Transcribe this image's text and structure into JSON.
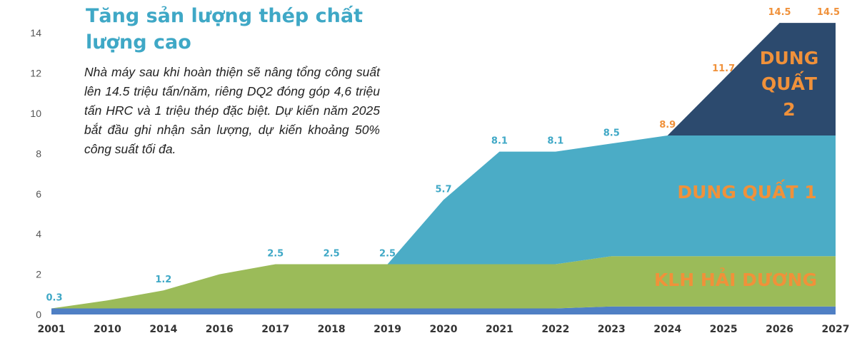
{
  "title": "Tăng sản lượng thép chất lượng cao",
  "description": "Nhà máy sau khi hoàn thiện sẽ nâng tổng công suất lên 14.5 triệu tấn/năm, riêng DQ2 đóng góp 4,6 triệu tấn HRC và 1 triệu thép đặc biệt. Dự kiến năm 2025 bắt đầu ghi nhận sản lượng, dự kiến khoảng 50% công suất tối đa.",
  "colors": {
    "title": "#3fa8c6",
    "base": "#4f7fc4",
    "klh": "#9bbb59",
    "dq1": "#4bacc6",
    "dq2": "#2c4a6e",
    "label_orange": "#f0913a",
    "label_teal": "#3fa8c6",
    "axis": "#555555"
  },
  "chart_data": {
    "type": "area",
    "stacked": true,
    "categories": [
      "2001",
      "2010",
      "2014",
      "2016",
      "2017",
      "2018",
      "2019",
      "2020",
      "2021",
      "2022",
      "2023",
      "2024",
      "2025",
      "2026",
      "2027"
    ],
    "y_ticks": [
      0,
      2,
      4,
      6,
      8,
      10,
      12,
      14
    ],
    "ylim": [
      0,
      14.5
    ],
    "series": [
      {
        "name": "",
        "color": "#4f7fc4",
        "values": [
          0.3,
          0.3,
          0.3,
          0.3,
          0.3,
          0.3,
          0.3,
          0.3,
          0.3,
          0.3,
          0.4,
          0.4,
          0.4,
          0.4,
          0.4
        ]
      },
      {
        "name": "KLH HẢI DƯƠNG",
        "color": "#9bbb59",
        "values": [
          0.0,
          0.4,
          0.9,
          1.7,
          2.2,
          2.2,
          2.2,
          2.2,
          2.2,
          2.2,
          2.5,
          2.5,
          2.5,
          2.5,
          2.5
        ]
      },
      {
        "name": "DUNG QUẤT 1",
        "color": "#4bacc6",
        "values": [
          0.0,
          0.0,
          0.0,
          0.0,
          0.0,
          0.0,
          0.0,
          3.2,
          5.6,
          5.6,
          5.6,
          6.0,
          6.0,
          6.0,
          6.0
        ]
      },
      {
        "name": "DUNG QUẤT 2",
        "color": "#2c4a6e",
        "values": [
          0.0,
          0.0,
          0.0,
          0.0,
          0.0,
          0.0,
          0.0,
          0.0,
          0.0,
          0.0,
          0.0,
          0.0,
          2.8,
          5.6,
          5.6
        ]
      }
    ],
    "totals": [
      0.3,
      null,
      1.2,
      null,
      2.5,
      2.5,
      2.5,
      5.7,
      8.1,
      8.1,
      8.5,
      8.9,
      11.7,
      14.5,
      14.5
    ],
    "total_labels": [
      {
        "i": 0,
        "text": "0.3",
        "color": "#3fa8c6"
      },
      {
        "i": 2,
        "text": "1.2",
        "color": "#3fa8c6"
      },
      {
        "i": 4,
        "text": "2.5",
        "color": "#3fa8c6"
      },
      {
        "i": 5,
        "text": "2.5",
        "color": "#3fa8c6"
      },
      {
        "i": 6,
        "text": "2.5",
        "color": "#3fa8c6"
      },
      {
        "i": 7,
        "text": "5.7",
        "color": "#3fa8c6"
      },
      {
        "i": 8,
        "text": "8.1",
        "color": "#3fa8c6"
      },
      {
        "i": 9,
        "text": "8.1",
        "color": "#3fa8c6"
      },
      {
        "i": 10,
        "text": "8.5",
        "color": "#3fa8c6"
      },
      {
        "i": 11,
        "text": "8.9",
        "color": "#f0913a"
      },
      {
        "i": 12,
        "text": "11.7",
        "color": "#f0913a"
      },
      {
        "i": 13,
        "text": "14.5",
        "color": "#f0913a"
      },
      {
        "i": 14,
        "text": "14.5",
        "color": "#f0913a"
      }
    ],
    "area_labels": [
      {
        "series": 1,
        "lines": [
          "KLH HẢI DƯƠNG"
        ],
        "color": "#f0913a"
      },
      {
        "series": 2,
        "lines": [
          "DUNG QUẤT 1"
        ],
        "color": "#f0913a"
      },
      {
        "series": 3,
        "lines": [
          "DUNG",
          "QUẤT",
          "2"
        ],
        "color": "#f0913a"
      }
    ],
    "legend": "none",
    "grid": false
  }
}
